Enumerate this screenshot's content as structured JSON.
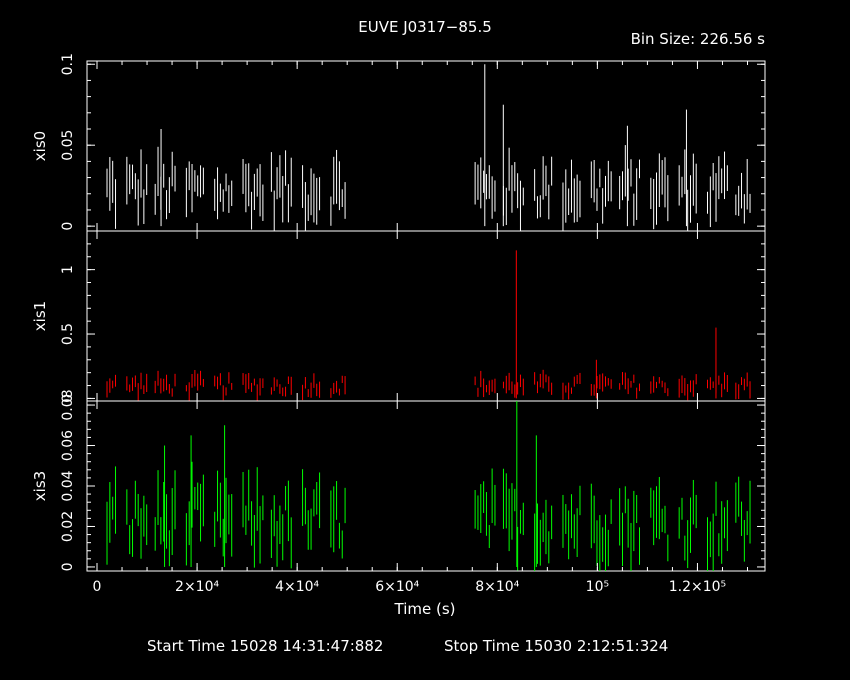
{
  "header": {
    "title": "EUVE J0317−85.5",
    "bin_size": "Bin Size: 226.56 s"
  },
  "footer": {
    "start_time": "Start Time 15028 14:31:47:882",
    "stop_time": "Stop Time 15030  2:12:51:324"
  },
  "colors": {
    "background": "#000000",
    "axes": "#ffffff",
    "xis0": "#ffffff",
    "xis1": "#ff0000",
    "xis3": "#00ff00"
  },
  "chart_data": {
    "type": "line",
    "xlabel": "Time (s)",
    "xlim": [
      -2000,
      133500
    ],
    "x_ticks": [
      {
        "value": 0,
        "label": "0"
      },
      {
        "value": 20000,
        "label": "2×10⁴"
      },
      {
        "value": 40000,
        "label": "4×10⁴"
      },
      {
        "value": 60000,
        "label": "6×10⁴"
      },
      {
        "value": 80000,
        "label": "8×10⁴"
      },
      {
        "value": 100000,
        "label": "10⁵"
      },
      {
        "value": 120000,
        "label": "1.2×10⁵"
      }
    ],
    "bin_size_s": 226.56,
    "segments": [
      [
        2000,
        50000
      ],
      [
        75000,
        131000
      ]
    ],
    "panels": [
      {
        "name": "xis0",
        "ylabel": "xis0",
        "color": "#ffffff",
        "ylim": [
          -0.003,
          0.102
        ],
        "y_ticks": [
          {
            "value": 0,
            "label": "0"
          },
          {
            "value": 0.05,
            "label": "0.05"
          },
          {
            "value": 0.1,
            "label": "0.1"
          }
        ],
        "typical_range": [
          0.0,
          0.045
        ],
        "spikes": [
          {
            "x": 77500,
            "y": 0.1
          },
          {
            "x": 81200,
            "y": 0.075
          },
          {
            "x": 106000,
            "y": 0.062
          },
          {
            "x": 117800,
            "y": 0.072
          },
          {
            "x": 12800,
            "y": 0.06
          }
        ]
      },
      {
        "name": "xis1",
        "ylabel": "xis1",
        "color": "#ff0000",
        "ylim": [
          -0.02,
          1.3
        ],
        "y_ticks": [
          {
            "value": 0,
            "label": "0"
          },
          {
            "value": 0.5,
            "label": "0.5"
          },
          {
            "value": 1,
            "label": "1"
          }
        ],
        "typical_range": [
          0.0,
          0.2
        ],
        "spikes": [
          {
            "x": 83800,
            "y": 1.15
          },
          {
            "x": 123700,
            "y": 0.55
          },
          {
            "x": 99800,
            "y": 0.3
          }
        ]
      },
      {
        "name": "xis3",
        "ylabel": "xis3",
        "color": "#00ff00",
        "ylim": [
          -0.002,
          0.082
        ],
        "y_ticks": [
          {
            "value": 0,
            "label": "0"
          },
          {
            "value": 0.02,
            "label": "0.02"
          },
          {
            "value": 0.04,
            "label": "0.04"
          },
          {
            "value": 0.06,
            "label": "0.06"
          },
          {
            "value": 0.08,
            "label": "0.08"
          }
        ],
        "typical_range": [
          0.0,
          0.045
        ],
        "spikes": [
          {
            "x": 83900,
            "y": 0.082
          },
          {
            "x": 87800,
            "y": 0.065
          },
          {
            "x": 25500,
            "y": 0.07
          },
          {
            "x": 18800,
            "y": 0.065
          },
          {
            "x": 13500,
            "y": 0.06
          }
        ]
      }
    ]
  }
}
